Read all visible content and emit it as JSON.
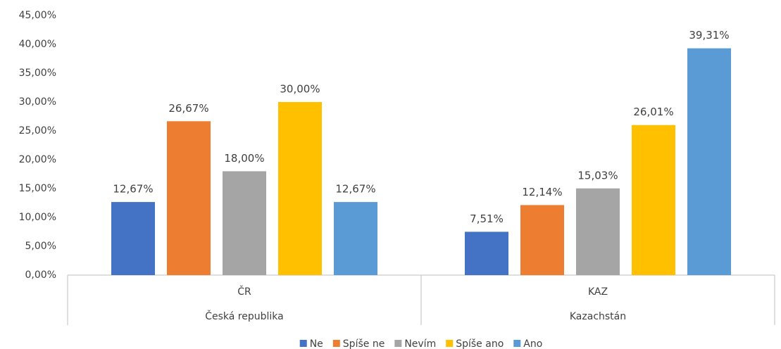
{
  "chart_data": {
    "type": "bar",
    "categories": [
      "ČR",
      "KAZ"
    ],
    "category_groups": [
      "Česká republika",
      "Kazachstán"
    ],
    "series": [
      {
        "name": "Ne",
        "color": "#4472c4",
        "values": [
          12.67,
          7.51
        ],
        "value_labels": [
          "12,67%",
          "7,51%"
        ]
      },
      {
        "name": "Spíše ne",
        "color": "#ed7d31",
        "values": [
          26.67,
          12.14
        ],
        "value_labels": [
          "26,67%",
          "12,14%"
        ]
      },
      {
        "name": "Nevím",
        "color": "#a5a5a5",
        "values": [
          18.0,
          15.03
        ],
        "value_labels": [
          "18,00%",
          "15,03%"
        ]
      },
      {
        "name": "Spíše ano",
        "color": "#ffc000",
        "values": [
          30.0,
          26.01
        ],
        "value_labels": [
          "30,00%",
          "26,01%"
        ]
      },
      {
        "name": "Ano",
        "color": "#5b9bd5",
        "values": [
          12.67,
          39.31
        ],
        "value_labels": [
          "12,67%",
          "39,31%"
        ]
      }
    ],
    "ylim": [
      0,
      45
    ],
    "yticks": [
      {
        "value": 0,
        "label": "0,00%"
      },
      {
        "value": 5,
        "label": "5,00%"
      },
      {
        "value": 10,
        "label": "10,00%"
      },
      {
        "value": 15,
        "label": "15,00%"
      },
      {
        "value": 20,
        "label": "20,00%"
      },
      {
        "value": 25,
        "label": "25,00%"
      },
      {
        "value": 30,
        "label": "30,00%"
      },
      {
        "value": 35,
        "label": "35,00%"
      },
      {
        "value": 40,
        "label": "40,00%"
      },
      {
        "value": 45,
        "label": "45,00%"
      }
    ],
    "grid": false,
    "legend": "bottom"
  }
}
